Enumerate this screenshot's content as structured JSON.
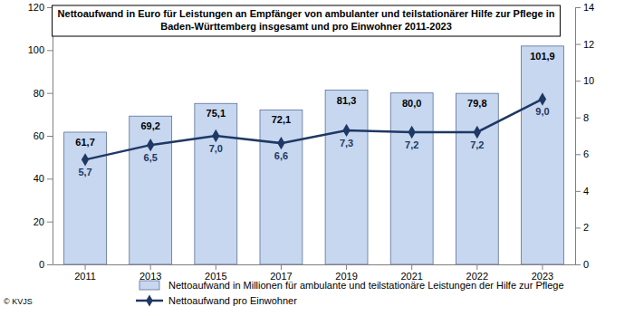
{
  "chart_data": {
    "type": "bar",
    "title": "Nettoaufwand in Euro für Leistungen an Empfänger von ambulanter und teilstationärer Hilfe zur Pflege in Baden-Württemberg insgesamt und pro Einwohner 2011-2023",
    "categories": [
      "2011",
      "2013",
      "2015",
      "2017",
      "2019",
      "2021",
      "2022",
      "2023"
    ],
    "series": [
      {
        "name": "Nettoaufwand in Millionen für ambulante und teilstationäre Leistungen der Hilfe zur Pflege",
        "type": "bar",
        "color": "#c6d7ef",
        "values": [
          61.7,
          69.2,
          75.1,
          72.1,
          81.3,
          80.0,
          79.8,
          101.9
        ],
        "value_labels": [
          "61,7",
          "69,2",
          "75,1",
          "72,1",
          "81,3",
          "80,0",
          "79,8",
          "101,9"
        ]
      },
      {
        "name": "Nettoaufwand pro Einwohner",
        "type": "line",
        "color": "#1f3864",
        "marker": "diamond",
        "axis": "y2",
        "values": [
          5.7,
          6.5,
          7.0,
          6.6,
          7.3,
          7.2,
          7.2,
          9.0
        ],
        "value_labels": [
          "5,7",
          "6,5",
          "7,0",
          "6,6",
          "7,3",
          "7,2",
          "7,2",
          "9,0"
        ]
      }
    ],
    "ylim": [
      0,
      120
    ],
    "yticks": [
      0,
      20,
      40,
      60,
      80,
      100,
      120
    ],
    "y2lim": [
      0,
      14
    ],
    "y2ticks": [
      0,
      2,
      4,
      6,
      8,
      10,
      12,
      14
    ],
    "data_labels": true,
    "legend": "bottom",
    "annotations": [
      "© KVJS"
    ]
  }
}
